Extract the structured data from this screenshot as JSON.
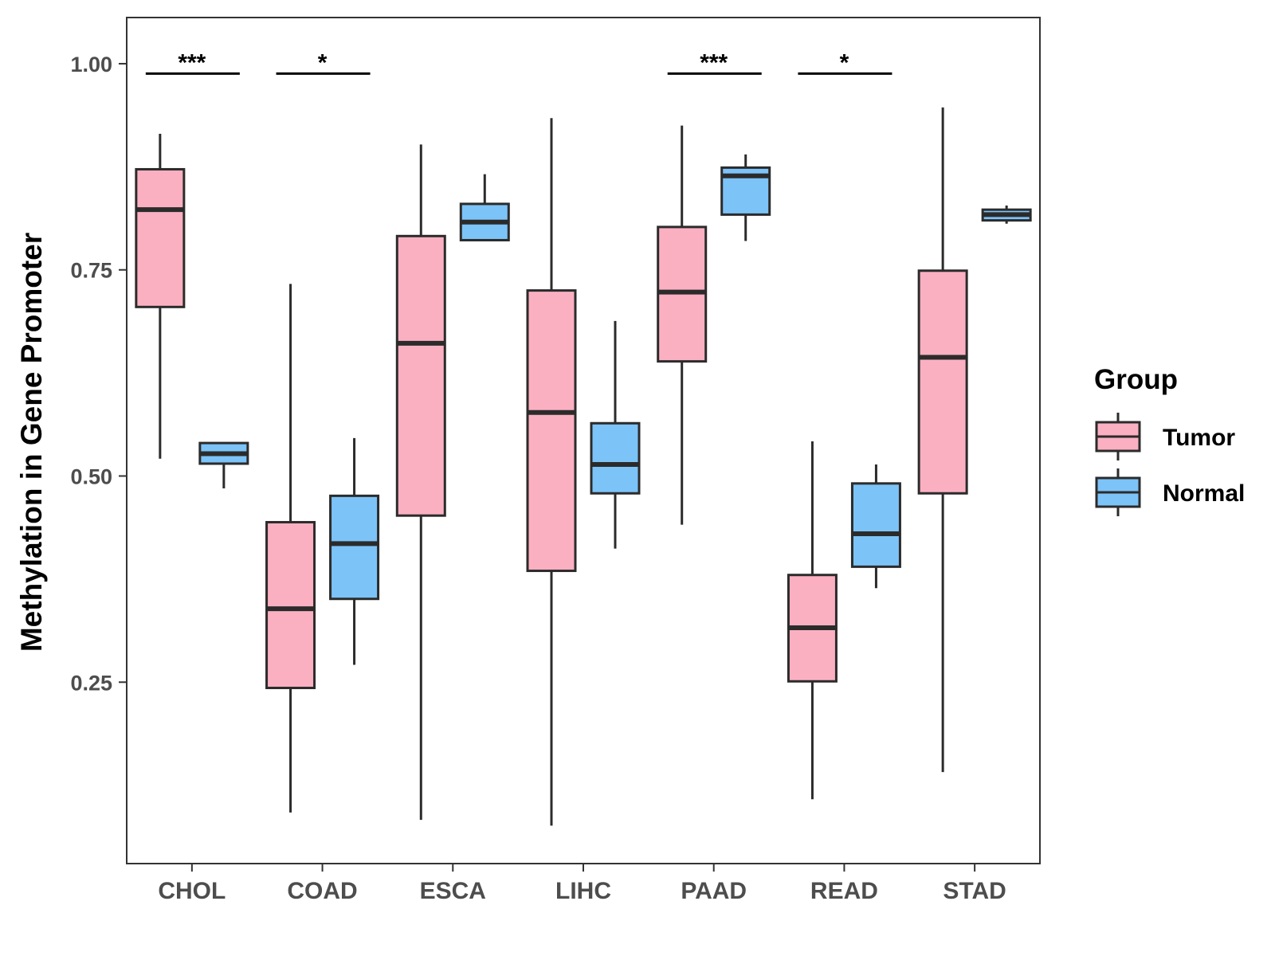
{
  "chart_data": {
    "type": "boxplot",
    "title": "",
    "xlabel": "",
    "ylabel": "Methylation in Gene Promoter",
    "ylim": [
      0.03,
      1.056
    ],
    "yticks": [
      0.25,
      0.5,
      0.75,
      1.0
    ],
    "ytick_labels": [
      "0.25",
      "0.50",
      "0.75",
      "1.00"
    ],
    "categories": [
      "CHOL",
      "COAD",
      "ESCA",
      "LIHC",
      "PAAD",
      "READ",
      "STAD"
    ],
    "legend": {
      "title": "Group",
      "position": "right",
      "entries": [
        {
          "name": "Tumor",
          "color": "#fbb0c2"
        },
        {
          "name": "Normal",
          "color": "#7cc3f8"
        }
      ]
    },
    "series": [
      {
        "name": "Tumor",
        "color": "#fbb0c2",
        "boxes": [
          {
            "category": "CHOL",
            "min": 0.521,
            "q1": 0.705,
            "median": 0.823,
            "q3": 0.872,
            "max": 0.915
          },
          {
            "category": "COAD",
            "min": 0.092,
            "q1": 0.243,
            "median": 0.339,
            "q3": 0.444,
            "max": 0.733
          },
          {
            "category": "ESCA",
            "min": 0.083,
            "q1": 0.452,
            "median": 0.661,
            "q3": 0.791,
            "max": 0.902
          },
          {
            "category": "LIHC",
            "min": 0.076,
            "q1": 0.385,
            "median": 0.577,
            "q3": 0.725,
            "max": 0.934
          },
          {
            "category": "PAAD",
            "min": 0.441,
            "q1": 0.639,
            "median": 0.723,
            "q3": 0.802,
            "max": 0.925
          },
          {
            "category": "READ",
            "min": 0.108,
            "q1": 0.251,
            "median": 0.316,
            "q3": 0.38,
            "max": 0.542
          },
          {
            "category": "STAD",
            "min": 0.141,
            "q1": 0.479,
            "median": 0.644,
            "q3": 0.749,
            "max": 0.947
          }
        ]
      },
      {
        "name": "Normal",
        "color": "#7cc3f8",
        "boxes": [
          {
            "category": "CHOL",
            "min": 0.485,
            "q1": 0.515,
            "median": 0.527,
            "q3": 0.54,
            "max": 0.54
          },
          {
            "category": "COAD",
            "min": 0.271,
            "q1": 0.351,
            "median": 0.418,
            "q3": 0.476,
            "max": 0.546
          },
          {
            "category": "ESCA",
            "min": 0.786,
            "q1": 0.786,
            "median": 0.808,
            "q3": 0.83,
            "max": 0.866
          },
          {
            "category": "LIHC",
            "min": 0.412,
            "q1": 0.479,
            "median": 0.514,
            "q3": 0.564,
            "max": 0.688
          },
          {
            "category": "PAAD",
            "min": 0.785,
            "q1": 0.817,
            "median": 0.864,
            "q3": 0.874,
            "max": 0.89
          },
          {
            "category": "READ",
            "min": 0.364,
            "q1": 0.39,
            "median": 0.43,
            "q3": 0.491,
            "max": 0.514
          },
          {
            "category": "STAD",
            "min": 0.806,
            "q1": 0.81,
            "median": 0.817,
            "q3": 0.823,
            "max": 0.828
          }
        ]
      }
    ],
    "annotations": [
      {
        "category": "CHOL",
        "label": "***",
        "y": 0.988
      },
      {
        "category": "COAD",
        "label": "*",
        "y": 0.988
      },
      {
        "category": "PAAD",
        "label": "***",
        "y": 0.988
      },
      {
        "category": "READ",
        "label": "*",
        "y": 0.988
      }
    ]
  }
}
